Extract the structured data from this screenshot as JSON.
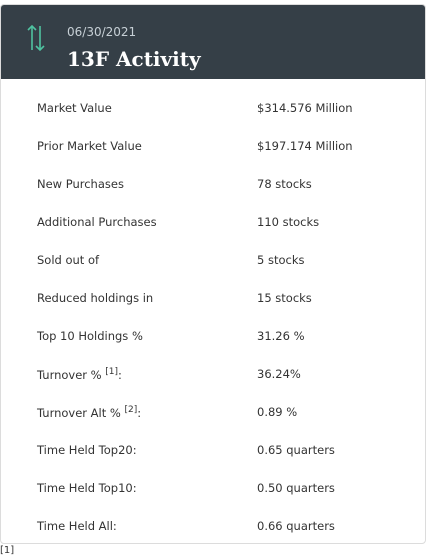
{
  "header": {
    "date": "06/30/2021",
    "title": "13F Activity"
  },
  "table": {
    "rows": [
      {
        "label": "Market Value",
        "value": "$314.576 Million"
      },
      {
        "label": "Prior Market Value",
        "value": "$197.174 Million"
      },
      {
        "label": "New Purchases",
        "value": "78 stocks"
      },
      {
        "label": "Additional Purchases",
        "value": "110 stocks"
      },
      {
        "label": "Sold out of",
        "value": "5 stocks"
      },
      {
        "label": "Reduced holdings in",
        "value": "15 stocks"
      },
      {
        "label": "Top 10 Holdings %",
        "value": "31.26 %"
      },
      {
        "label": "Turnover %",
        "note": "[1]",
        "suffix": ":",
        "value": "36.24%"
      },
      {
        "label": "Turnover Alt %",
        "note": "[2]",
        "suffix": ":",
        "value": "0.89 %"
      },
      {
        "label": "Time Held Top20:",
        "value": "0.65 quarters"
      },
      {
        "label": "Time Held Top10:",
        "value": "0.50 quarters"
      },
      {
        "label": "Time Held All:",
        "value": "0.66 quarters"
      }
    ]
  },
  "footnote": "[1]"
}
